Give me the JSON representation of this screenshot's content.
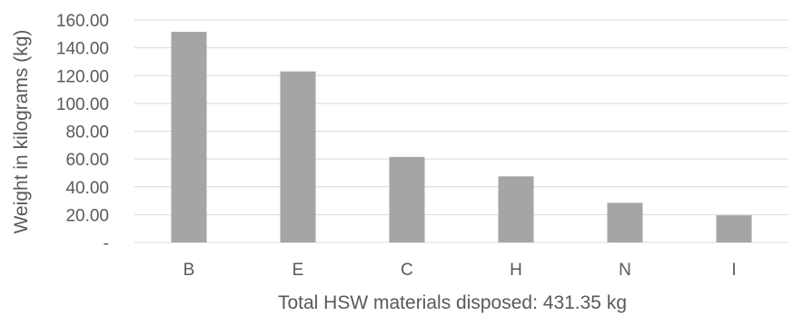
{
  "chart_data": {
    "type": "bar",
    "categories": [
      "B",
      "E",
      "C",
      "H",
      "N",
      "I"
    ],
    "values": [
      151.5,
      123.0,
      61.5,
      47.5,
      28.5,
      19.5
    ],
    "title": "",
    "xlabel": "Total HSW materials disposed: 431.35 kg",
    "ylabel": "Weight in kilograms (kg)",
    "ylim": [
      0,
      160
    ],
    "yticks": [
      0,
      20,
      40,
      60,
      80,
      100,
      120,
      140,
      160
    ],
    "ytick_labels": [
      "-",
      "20.00",
      "40.00",
      "60.00",
      "80.00",
      "100.00",
      "120.00",
      "140.00",
      "160.00"
    ],
    "grid": true,
    "legend": "none",
    "colors": {
      "bar": "#a5a5a5",
      "grid": "#d9d9d9",
      "text": "#595959"
    }
  }
}
